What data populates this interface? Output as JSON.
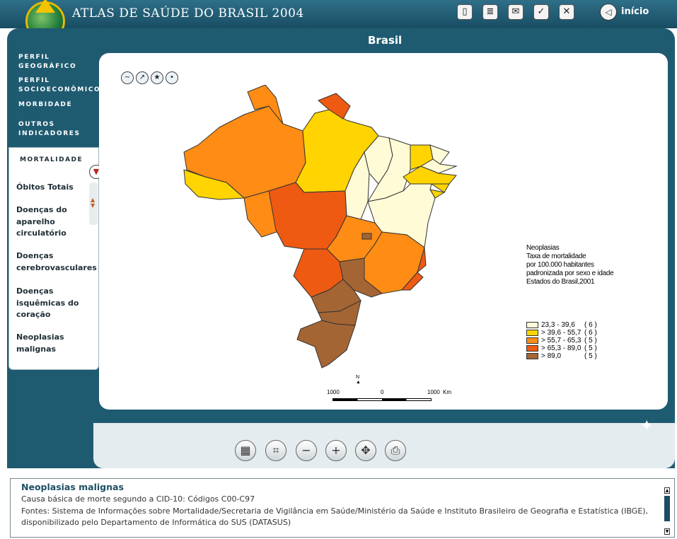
{
  "header": {
    "app_title": "ATLAS DE SAÚDE DO BRASIL 2004",
    "toolbar_icons": [
      "book-icon",
      "notes-icon",
      "mail-icon",
      "checklist-icon",
      "close-icon"
    ],
    "home_label": "início"
  },
  "page_heading": "Brasil",
  "menu": {
    "top_items": [
      "PERFIL GEOGRÁFICO",
      "PERFIL SOCIOECONÔMICO",
      "MORBIDADE",
      "OUTROS INDICADORES"
    ],
    "active_section": "MORTALIDADE",
    "sub_items": [
      "Óbitos Totais",
      "Doenças do aparelho circulatório",
      "Doenças cerebrovasculares",
      "Doenças isquêmicas do coração",
      "Neoplasias malignas"
    ]
  },
  "map": {
    "legend_title_lines": [
      "Neoplasias",
      "Taxa de mortalidade",
      "por 100.000 habitantes",
      "padronizada por sexo e idade",
      "Estados do Brasil,2001"
    ],
    "legend": [
      {
        "label": "23,3 - 39,6",
        "count": "( 6 )",
        "color": "#fffbd6"
      },
      {
        "label": "> 39,6 - 55,7",
        "count": "( 6 )",
        "color": "#ffd400"
      },
      {
        "label": "> 55,7 - 65,3",
        "count": "( 5 )",
        "color": "#ff8c14"
      },
      {
        "label": "> 65,3 - 89,0",
        "count": "( 5 )",
        "color": "#ee5a12"
      },
      {
        "label": "> 89,0",
        "count": "( 5 )",
        "color": "#a46534"
      }
    ],
    "scale_labels": [
      "1000",
      "0",
      "1000",
      "Km"
    ],
    "north_label": "N"
  },
  "controls": [
    "table-icon",
    "chart-icon",
    "zoom-out-icon",
    "zoom-in-icon",
    "pan-icon",
    "print-icon"
  ],
  "info": {
    "title": "Neoplasias malignas",
    "line1": "Causa básica de morte segundo a CID-10: Códigos C00-C97",
    "line2": "Fontes: Sistema de Informações sobre Mortalidade/Secretaria de Vigilância em Saúde/Ministério da Saúde e Instituto Brasileiro de Geografia e Estatística (IBGE),",
    "line3": "disponibilizado pelo Departamento de Informática do SUS (DATASUS)"
  }
}
